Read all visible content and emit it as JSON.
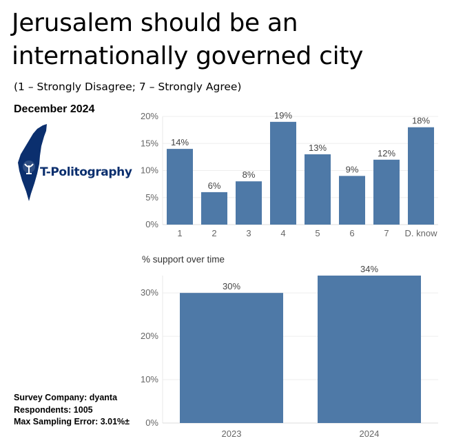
{
  "title": "Jerusalem should be an internationally governed city",
  "subtitle": "(1 – Strongly Disagree; 7 – Strongly Agree)",
  "date_label": "December 2024",
  "logo": {
    "text": "T-Politography",
    "icon": "israel-map-logo-icon"
  },
  "footer": {
    "company": "Survey Company: dyanta",
    "respondents": "Respondents: 1005",
    "error": "Max Sampling Error: 3.01%±"
  },
  "colors": {
    "bar": "#4e79a7",
    "grid": "#eeeeee",
    "logo": "#0b2f6e"
  },
  "chart_data": [
    {
      "type": "bar",
      "categories": [
        "1",
        "2",
        "3",
        "4",
        "5",
        "6",
        "7",
        "D. know"
      ],
      "values": [
        14,
        6,
        8,
        19,
        13,
        9,
        12,
        18
      ],
      "data_labels": [
        "14%",
        "6%",
        "8%",
        "19%",
        "13%",
        "9%",
        "12%",
        "18%"
      ],
      "ylim": [
        0,
        20
      ],
      "yticks": [
        0,
        5,
        10,
        15,
        20
      ],
      "ytick_labels": [
        "0%",
        "5%",
        "10%",
        "15%",
        "20%"
      ],
      "grid": true
    },
    {
      "type": "bar",
      "title": "% support over time",
      "categories": [
        "2023",
        "2024"
      ],
      "values": [
        30,
        34
      ],
      "data_labels": [
        "30%",
        "34%"
      ],
      "ylim": [
        0,
        34
      ],
      "yticks": [
        0,
        10,
        20,
        30
      ],
      "ytick_labels": [
        "0%",
        "10%",
        "20%",
        "30%"
      ],
      "grid": true
    }
  ]
}
